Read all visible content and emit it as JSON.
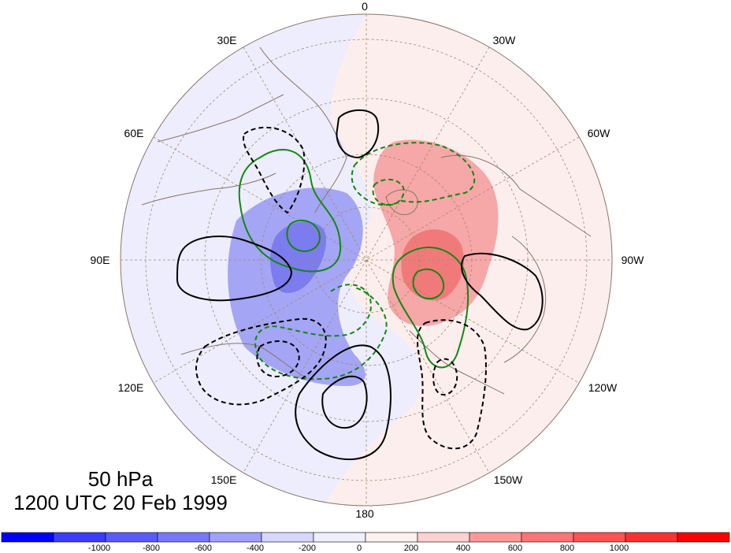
{
  "title": {
    "level": "50 hPa",
    "datetime": "1200 UTC 20 Feb 1999"
  },
  "longitude_labels": {
    "top": "0",
    "top_left_30": "30E",
    "top_right_30": "30W",
    "left_60": "60E",
    "right_60": "60W",
    "left_90": "90E",
    "right_90": "90W",
    "left_120": "120E",
    "right_120": "120W",
    "bottom_left_150": "150E",
    "bottom_right_150": "150W",
    "bottom": "180"
  },
  "colorbar": {
    "colors": [
      "#0000ff",
      "#3c3cff",
      "#5a5aff",
      "#7878ff",
      "#a0a0ff",
      "#d6d6ff",
      "#eeeeff",
      "#fff0f0",
      "#ffd0d0",
      "#ff9898",
      "#ff7474",
      "#ff5252",
      "#ff3030",
      "#ff0000"
    ],
    "tick_labels": [
      "-1000",
      "-800",
      "-600",
      "-400",
      "-200",
      "0",
      "200",
      "400",
      "600",
      "800",
      "1000"
    ]
  },
  "fill_colors": {
    "neg_light": "#ededfd",
    "neg_mid": "#a5a5f5",
    "neg_strong": "#7c7cee",
    "pos_light": "#fdeeee",
    "pos_mid": "#f6a7a7",
    "pos_strong": "#f07a7a",
    "green_contour": "#118811",
    "black_contour": "#000000",
    "coast": "#8a7565",
    "grid": "#a08868"
  }
}
